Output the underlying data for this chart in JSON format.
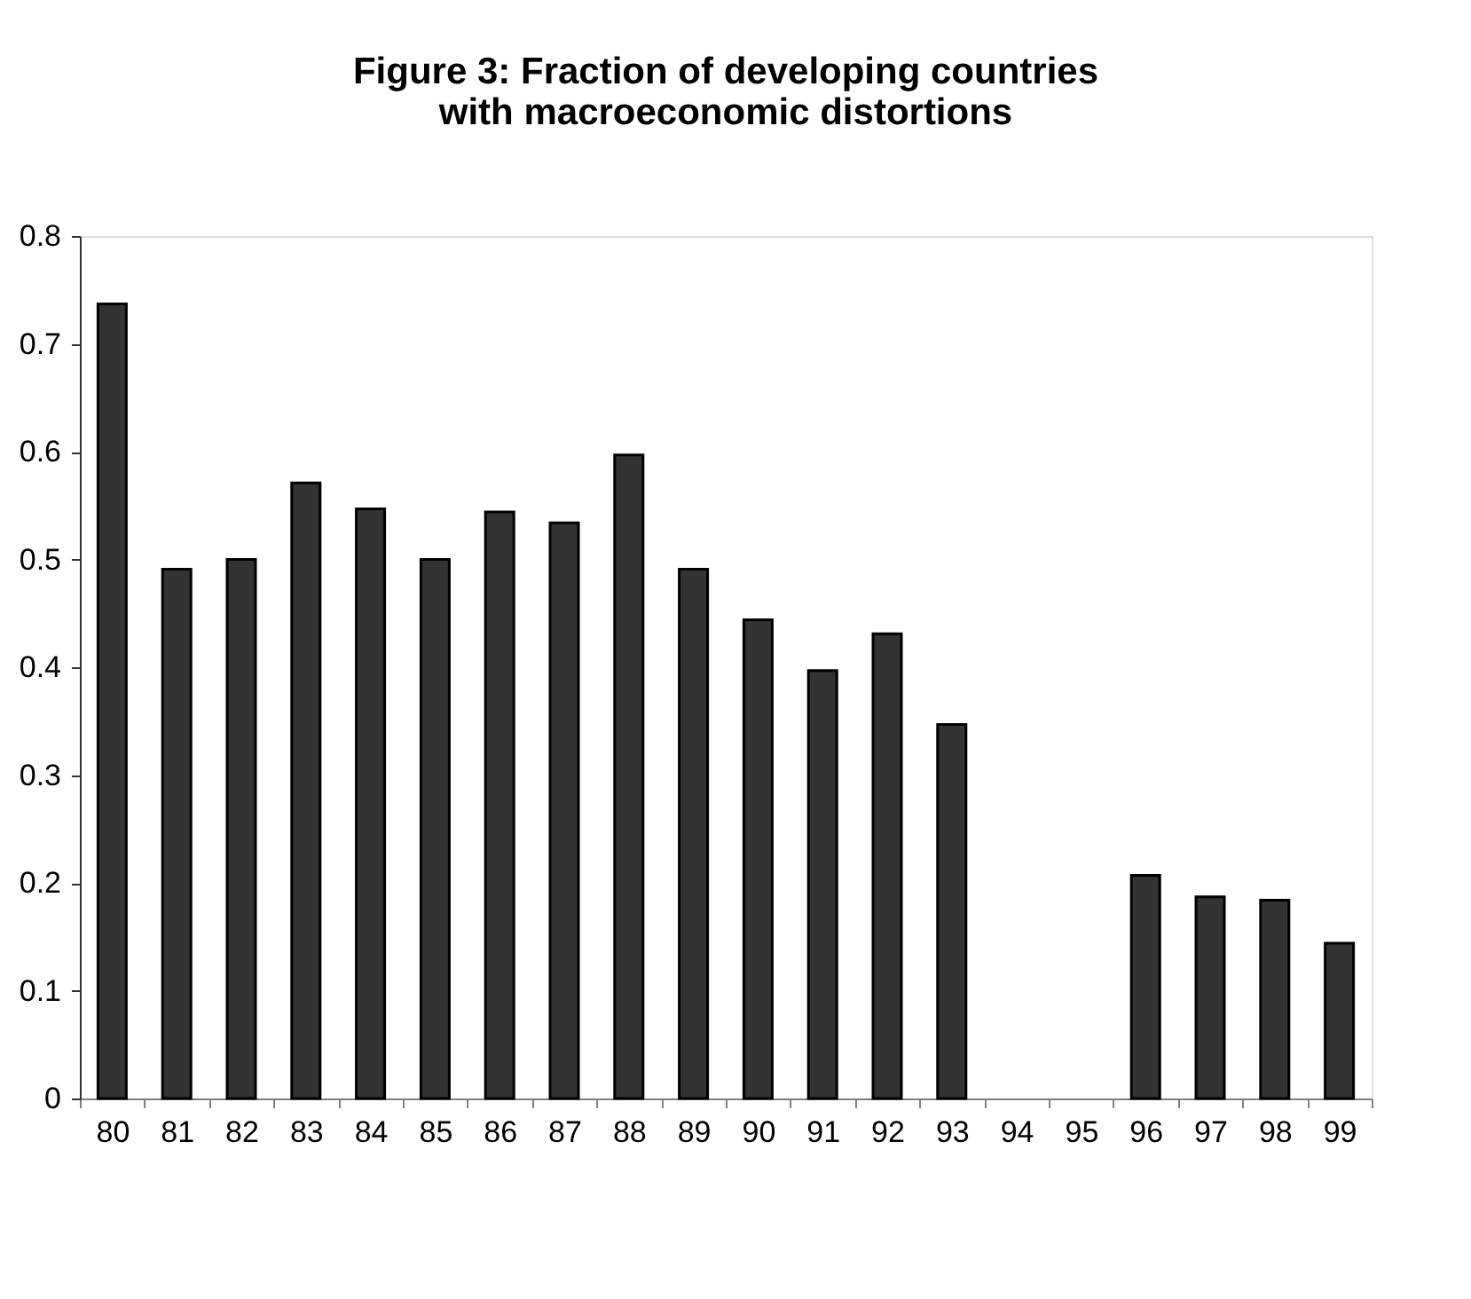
{
  "chart_data": {
    "type": "bar",
    "title": "Figure 3: Fraction of developing countries with macroeconomic distortions",
    "categories": [
      "80",
      "81",
      "82",
      "83",
      "84",
      "85",
      "86",
      "87",
      "88",
      "89",
      "90",
      "91",
      "92",
      "93",
      "94",
      "95",
      "96",
      "97",
      "98",
      "99"
    ],
    "values": [
      0.737,
      0.491,
      0.5,
      0.571,
      0.547,
      0.5,
      0.544,
      0.534,
      0.597,
      0.491,
      0.444,
      0.397,
      0.431,
      0.347,
      null,
      null,
      0.207,
      0.187,
      0.184,
      0.144
    ],
    "color": "#333333",
    "ylim": [
      0,
      0.8
    ],
    "yticks": [
      0,
      0.1,
      0.2,
      0.3,
      0.4,
      0.5,
      0.6,
      0.7,
      0.8
    ],
    "grid": false
  }
}
